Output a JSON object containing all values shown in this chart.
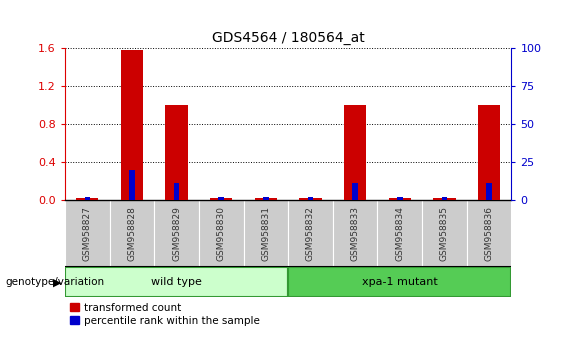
{
  "title": "GDS4564 / 180564_at",
  "samples": [
    "GSM958827",
    "GSM958828",
    "GSM958829",
    "GSM958830",
    "GSM958831",
    "GSM958832",
    "GSM958833",
    "GSM958834",
    "GSM958835",
    "GSM958836"
  ],
  "transformed_count": [
    0.02,
    1.58,
    1.0,
    0.02,
    0.02,
    0.02,
    1.0,
    0.02,
    0.02,
    1.0
  ],
  "percentile_rank_pct": [
    2,
    20,
    11,
    2,
    2,
    2,
    11,
    2,
    2,
    11
  ],
  "ylim_left": [
    0,
    1.6
  ],
  "ylim_right": [
    0,
    100
  ],
  "yticks_left": [
    0,
    0.4,
    0.8,
    1.2,
    1.6
  ],
  "yticks_right": [
    0,
    25,
    50,
    75,
    100
  ],
  "bar_color_red": "#cc0000",
  "bar_color_blue": "#0000cc",
  "wild_type_indices": [
    0,
    1,
    2,
    3,
    4
  ],
  "mutant_indices": [
    5,
    6,
    7,
    8,
    9
  ],
  "wild_type_label": "wild type",
  "mutant_label": "xpa-1 mutant",
  "group_label": "genotype/variation",
  "legend_red": "transformed count",
  "legend_blue": "percentile rank within the sample",
  "wild_type_color": "#ccffcc",
  "mutant_color": "#55cc55",
  "tick_label_color": "#333333",
  "left_axis_color": "#dd0000",
  "right_axis_color": "#0000cc",
  "grid_color": "#000000",
  "bg_color": "#ffffff",
  "xticklabel_bg": "#cccccc"
}
